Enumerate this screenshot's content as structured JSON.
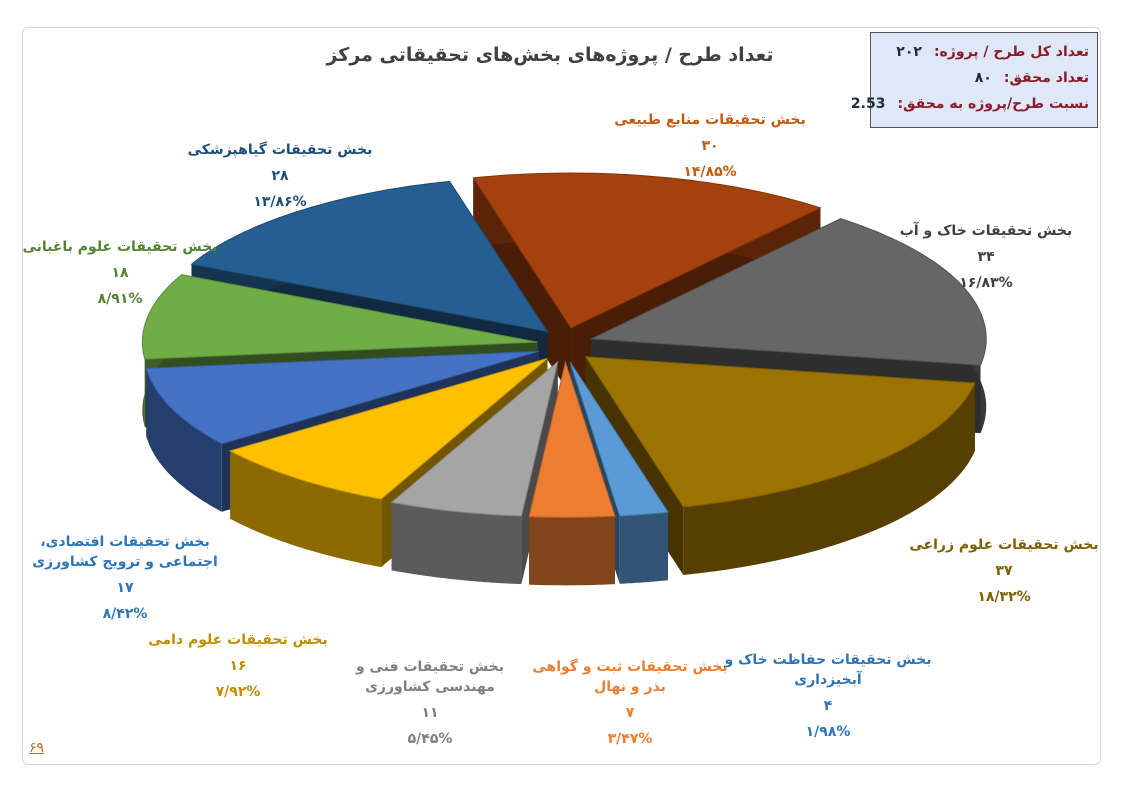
{
  "title": "تعداد طرح / پروژه‌های بخش‌های تحقیقاتی مرکز",
  "info": {
    "total_label": "تعداد کل طرح / پروژه:",
    "total_value": "۲۰۲",
    "researchers_label": "تعداد محقق:",
    "researchers_value": "۸۰",
    "ratio_label": "نسبت طرح/پروژه به محقق:",
    "ratio_value": "2.53"
  },
  "page_number": "۶۹",
  "chart_data": {
    "type": "pie",
    "title": "تعداد طرح / پروژه‌های بخش‌های تحقیقاتی مرکز",
    "three_d": true,
    "exploded": true,
    "slices": [
      {
        "name": "بخش تحقیقات منابع طبیعی",
        "value": 30,
        "value_label": "۳۰",
        "percent": 14.85,
        "percent_label": "۱۴/۸۵%",
        "color": "#a5410d",
        "label_color": "#c55a11"
      },
      {
        "name": "بخش تحقیقات خاک و آب",
        "value": 34,
        "value_label": "۳۴",
        "percent": 16.83,
        "percent_label": "۱۶/۸۳%",
        "color": "#666666",
        "label_color": "#404040"
      },
      {
        "name": "بخش تحقیقات علوم زراعی",
        "value": 37,
        "value_label": "۳۷",
        "percent": 18.32,
        "percent_label": "۱۸/۳۲%",
        "color": "#9c7200",
        "label_color": "#7f6000"
      },
      {
        "name": "بخش تحقیقات حفاظت خاک و آبخیزداری",
        "value": 4,
        "value_label": "۴",
        "percent": 1.98,
        "percent_label": "۱/۹۸%",
        "color": "#5b9bd5",
        "label_color": "#2e75b6"
      },
      {
        "name": "بخش تحقیقات ثبت و گواهی بذر و نهال",
        "value": 7,
        "value_label": "۷",
        "percent": 3.47,
        "percent_label": "۳/۴۷%",
        "color": "#ed7d31",
        "label_color": "#ed7d31"
      },
      {
        "name": "بخش تحقیقات فنی و مهندسی کشاورزی",
        "value": 11,
        "value_label": "۱۱",
        "percent": 5.45,
        "percent_label": "۵/۴۵%",
        "color": "#a5a5a5",
        "label_color": "#7f7f7f"
      },
      {
        "name": "بخش تحقیقات علوم دامی",
        "value": 16,
        "value_label": "۱۶",
        "percent": 7.92,
        "percent_label": "۷/۹۲%",
        "color": "#ffc000",
        "label_color": "#bf8f00"
      },
      {
        "name": "بخش تحقیقات اقتصادی، اجتماعی و ترویج کشاورزی",
        "value": 17,
        "value_label": "۱۷",
        "percent": 8.42,
        "percent_label": "۸/۴۲%",
        "color": "#4472c4",
        "label_color": "#2e75b6"
      },
      {
        "name": "بخش تحقیقات علوم باغبانی",
        "value": 18,
        "value_label": "۱۸",
        "percent": 8.91,
        "percent_label": "۸/۹۱%",
        "color": "#70ad47",
        "label_color": "#548235"
      },
      {
        "name": "بخش تحقیقات گیاهپزشکی",
        "value": 28,
        "value_label": "۲۸",
        "percent": 13.86,
        "percent_label": "۱۳/۸۶%",
        "color": "#255e91",
        "label_color": "#1f4e79"
      }
    ]
  }
}
